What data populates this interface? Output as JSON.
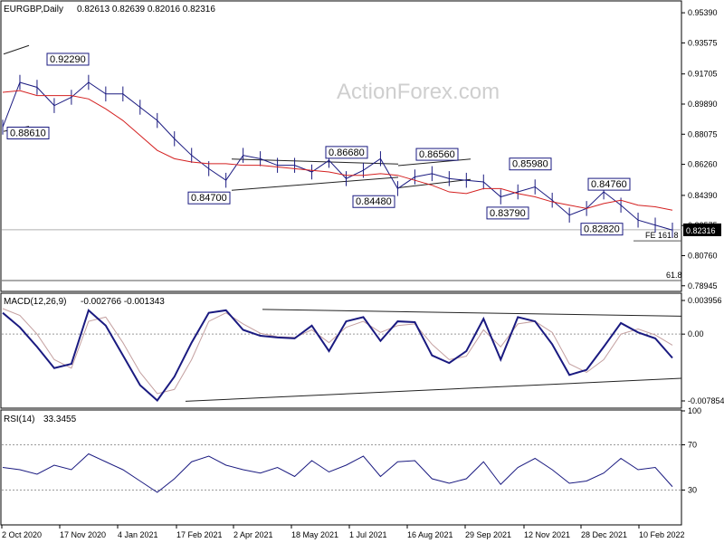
{
  "chart_data": [
    {
      "type": "ohlc",
      "header": "EURGBP,Daily",
      "ohlc_values": "0.82613 0.82639 0.82016 0.82316",
      "watermark": "ActionForex.com",
      "y_ticks": [
        0.9539,
        0.93575,
        0.91705,
        0.8989,
        0.88075,
        0.8626,
        0.8439,
        0.82575,
        0.8076,
        0.78945
      ],
      "y_tick_labels": [
        "0.95390",
        "0.93575",
        "0.91705",
        "0.89890",
        "0.88075",
        "0.86260",
        "0.84390",
        "0.82575",
        "0.80760",
        "0.78945"
      ],
      "ylim": [
        0.7866,
        0.9605
      ],
      "current_price": "0.82316",
      "price_path": [
        0.885,
        0.912,
        0.909,
        0.898,
        0.903,
        0.912,
        0.905,
        0.905,
        0.897,
        0.889,
        0.878,
        0.868,
        0.86,
        0.853,
        0.868,
        0.866,
        0.862,
        0.862,
        0.858,
        0.865,
        0.854,
        0.859,
        0.866,
        0.848,
        0.855,
        0.857,
        0.854,
        0.853,
        0.852,
        0.843,
        0.846,
        0.849,
        0.841,
        0.832,
        0.836,
        0.846,
        0.838,
        0.829,
        0.826,
        0.823
      ],
      "ma_path": [
        0.906,
        0.907,
        0.904,
        0.904,
        0.904,
        0.902,
        0.896,
        0.889,
        0.88,
        0.871,
        0.866,
        0.864,
        0.863,
        0.863,
        0.862,
        0.862,
        0.861,
        0.86,
        0.859,
        0.858,
        0.856,
        0.856,
        0.857,
        0.856,
        0.853,
        0.85,
        0.846,
        0.845,
        0.848,
        0.848,
        0.845,
        0.843,
        0.84,
        0.838,
        0.836,
        0.839,
        0.841,
        0.838,
        0.837,
        0.835
      ],
      "annotations": [
        {
          "label": "0.92290",
          "value": 0.9229
        },
        {
          "label": "0.88610",
          "value": 0.8861
        },
        {
          "label": "0.84700",
          "value": 0.847
        },
        {
          "label": "0.86680",
          "value": 0.8668
        },
        {
          "label": "0.84480",
          "value": 0.8448
        },
        {
          "label": "0.86560",
          "value": 0.8656
        },
        {
          "label": "0.83790",
          "value": 0.8379
        },
        {
          "label": "0.85980",
          "value": 0.8598
        },
        {
          "label": "0.82820",
          "value": 0.8282
        },
        {
          "label": "0.84760",
          "value": 0.8476
        }
      ],
      "fibo_labels": [
        "FE 161.8",
        "61.8"
      ],
      "fibo_levels": [
        0.8165,
        0.7926
      ]
    },
    {
      "type": "line",
      "name": "MACD(12,26,9)",
      "values_text": "-0.002766 -0.001343",
      "y_ticks": [
        0.003956,
        0.0,
        -0.007854
      ],
      "y_tick_labels": [
        "0.003956",
        "0.00",
        "-0.007854"
      ],
      "ylim": [
        -0.0086,
        0.0047
      ],
      "macd_path": [
        0.0025,
        0.0008,
        -0.0015,
        -0.004,
        -0.0035,
        0.0028,
        0.001,
        -0.0025,
        -0.006,
        -0.0078,
        -0.005,
        -0.001,
        0.0025,
        0.0028,
        0.0005,
        -0.0002,
        -0.0004,
        -0.0005,
        0.001,
        -0.002,
        0.0015,
        0.002,
        -0.0008,
        0.0015,
        0.0014,
        -0.0025,
        -0.0034,
        -0.002,
        0.0018,
        -0.003,
        0.002,
        0.0015,
        -0.0012,
        -0.0048,
        -0.0042,
        -0.0015,
        0.0013,
        0.0002,
        -0.0005,
        -0.0028
      ],
      "signal_path": [
        0.003,
        0.0022,
        0.0,
        -0.003,
        -0.004,
        0.0015,
        0.002,
        -0.001,
        -0.0045,
        -0.007,
        -0.0065,
        -0.003,
        0.0015,
        0.0025,
        0.0012,
        0.0001,
        -0.0003,
        -0.0004,
        0.0005,
        -0.001,
        0.0008,
        0.0015,
        0.0002,
        0.001,
        0.0012,
        -0.0012,
        -0.003,
        -0.0026,
        0.0005,
        -0.0015,
        0.0012,
        0.0015,
        0.0002,
        -0.0035,
        -0.0045,
        -0.003,
        0.0,
        0.0006,
        -0.0001,
        -0.0013
      ]
    },
    {
      "type": "line",
      "name": "RSI(14)",
      "value_text": "33.3455",
      "y_ticks": [
        100,
        70,
        30
      ],
      "y_tick_labels": [
        "100",
        "70",
        "30"
      ],
      "ylim": [
        0,
        100
      ],
      "rsi_path": [
        50,
        48,
        44,
        52,
        48,
        62,
        55,
        48,
        38,
        28,
        40,
        55,
        60,
        52,
        48,
        45,
        50,
        42,
        56,
        46,
        52,
        60,
        42,
        55,
        56,
        40,
        36,
        40,
        55,
        35,
        50,
        58,
        48,
        36,
        38,
        45,
        58,
        48,
        50,
        33
      ]
    }
  ],
  "x_axis": {
    "labels": [
      "2 Oct 2020",
      "17 Nov 2020",
      "4 Jan 2021",
      "17 Feb 2021",
      "2 Apr 2021",
      "18 May 2021",
      "1 Jul 2021",
      "16 Aug 2021",
      "29 Sep 2021",
      "12 Nov 2021",
      "28 Dec 2021",
      "10 Feb 2022"
    ]
  },
  "colors": {
    "price": "#1a1a80",
    "ma": "#d42020",
    "macd": "#1a1a80",
    "signal": "#c4a0a0",
    "rsi": "#1a1a80",
    "grid_dash": "#9a9a9a",
    "border": "#000000"
  }
}
